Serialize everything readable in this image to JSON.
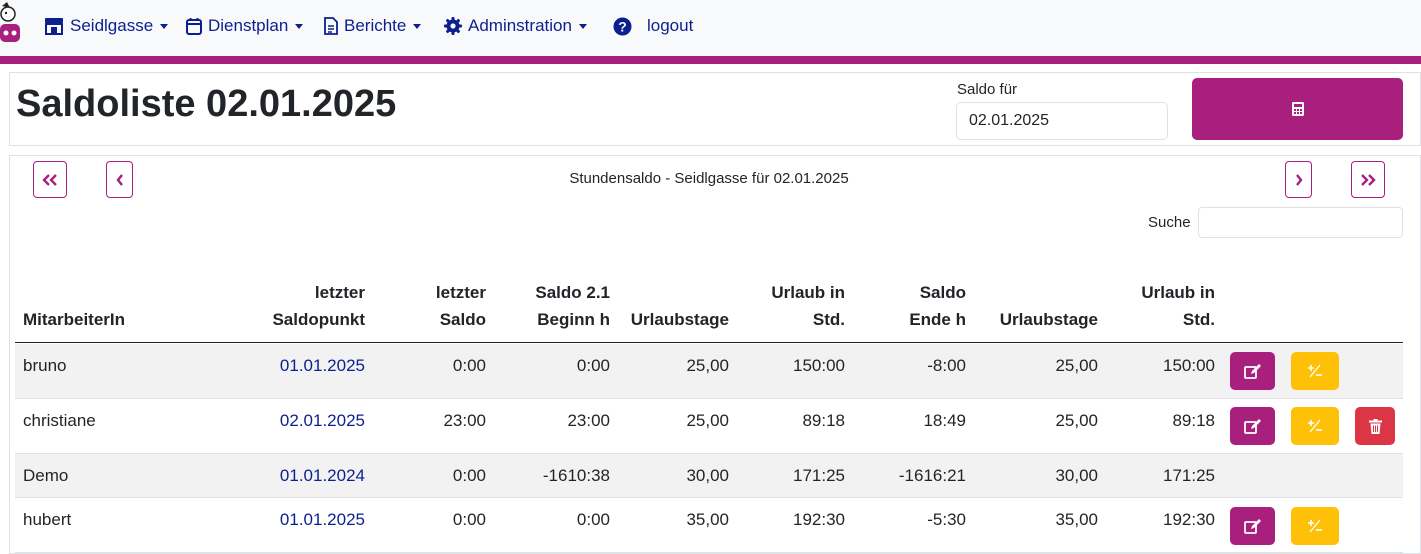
{
  "nav": {
    "items": [
      {
        "label": "Seidlgasse",
        "icon": "store-icon",
        "dropdown": true
      },
      {
        "label": "Dienstplan",
        "icon": "calendar-icon",
        "dropdown": true
      },
      {
        "label": "Berichte",
        "icon": "document-icon",
        "dropdown": true
      },
      {
        "label": "Adminstration",
        "icon": "gear-icon",
        "dropdown": true
      },
      {
        "label": "logout",
        "icon": "question-icon",
        "dropdown": false
      }
    ]
  },
  "header": {
    "title": "Saldoliste 02.01.2025",
    "saldo_label": "Saldo für",
    "saldo_value": "02.01.2025",
    "calc_button_icon": "calculator-icon"
  },
  "list": {
    "caption": "Stundensaldo - Seidlgasse für 02.01.2025",
    "search_label": "Suche",
    "search_value": "",
    "columns": [
      {
        "l1": "",
        "l2": "MitarbeiterIn"
      },
      {
        "l1": "letzter",
        "l2": "Saldopunkt"
      },
      {
        "l1": "letzter",
        "l2": "Saldo"
      },
      {
        "l1": "Saldo 2.1",
        "l2": "Beginn h"
      },
      {
        "l1": "",
        "l2": "Urlaubstage"
      },
      {
        "l1": "Urlaub in",
        "l2": "Std."
      },
      {
        "l1": "Saldo",
        "l2": "Ende h"
      },
      {
        "l1": "",
        "l2": "Urlaubstage"
      },
      {
        "l1": "Urlaub in",
        "l2": "Std."
      }
    ],
    "rows": [
      {
        "name": "bruno",
        "saldopunkt": "01.01.2025",
        "letzter_saldo": "0:00",
        "beginn": "0:00",
        "urlaubstage": "25,00",
        "urlaub_std": "150:00",
        "ende": "-8:00",
        "urlaubstage2": "25,00",
        "urlaub_std2": "150:00",
        "actions": [
          "edit",
          "adjust"
        ]
      },
      {
        "name": "christiane",
        "saldopunkt": "02.01.2025",
        "letzter_saldo": "23:00",
        "beginn": "23:00",
        "urlaubstage": "25,00",
        "urlaub_std": "89:18",
        "ende": "18:49",
        "urlaubstage2": "25,00",
        "urlaub_std2": "89:18",
        "actions": [
          "edit",
          "adjust",
          "delete"
        ]
      },
      {
        "name": "Demo",
        "saldopunkt": "01.01.2024",
        "letzter_saldo": "0:00",
        "beginn": "-1610:38",
        "urlaubstage": "30,00",
        "urlaub_std": "171:25",
        "ende": "-1616:21",
        "urlaubstage2": "30,00",
        "urlaub_std2": "171:25",
        "actions": []
      },
      {
        "name": "hubert",
        "saldopunkt": "01.01.2025",
        "letzter_saldo": "0:00",
        "beginn": "0:00",
        "urlaubstage": "35,00",
        "urlaub_std": "192:30",
        "ende": "-5:30",
        "urlaubstage2": "35,00",
        "urlaub_std2": "192:30",
        "actions": [
          "edit",
          "adjust"
        ]
      }
    ]
  },
  "colors": {
    "accent": "#a81f7d",
    "nav_text": "#0b1f8f",
    "adjust_button": "#ffc107",
    "delete_button": "#dc3545"
  }
}
